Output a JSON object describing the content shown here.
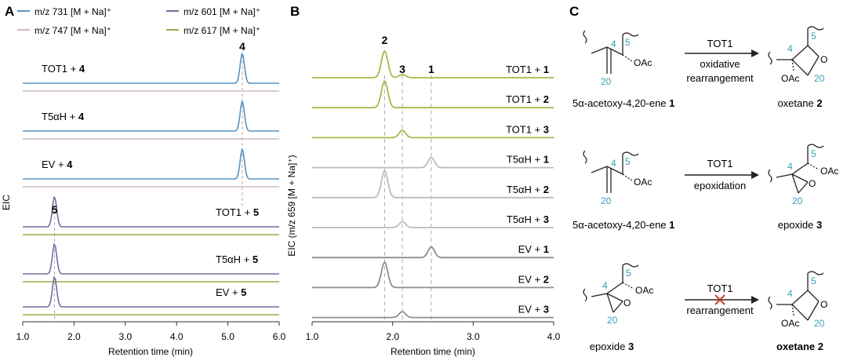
{
  "panel_labels": {
    "a": "A",
    "b": "B",
    "c": "C"
  },
  "legend": [
    {
      "label": "m/z 731 [M + Na]⁺",
      "color": "#5b93bf"
    },
    {
      "label": "m/z 601 [M + Na]⁺",
      "color": "#7a6aa0"
    },
    {
      "label": "m/z 747 [M + Na]⁺",
      "color": "#cfb8cb"
    },
    {
      "label": "m/z 617 [M + Na]⁺",
      "color": "#9bac4b"
    }
  ],
  "panel_a": {
    "ylabel": "EIC",
    "xlabel": "Retention time (min)",
    "peak_labels": [
      {
        "text": "4",
        "x": 5.28
      },
      {
        "text": "5",
        "x": 1.62
      }
    ],
    "traces": [
      {
        "label_plain": "TOT1 + ",
        "label_bold": "4",
        "top_color": "#5b93bf",
        "bottom_color": "#cfb8cb",
        "peak_x": 5.28,
        "peak_height": 1.0,
        "label_pos": "left"
      },
      {
        "label_plain": "T5αH + ",
        "label_bold": "4",
        "top_color": "#5b93bf",
        "bottom_color": "#cfb8cb",
        "peak_x": 5.28,
        "peak_height": 1.0,
        "label_pos": "left"
      },
      {
        "label_plain": "EV + ",
        "label_bold": "4",
        "top_color": "#5b93bf",
        "bottom_color": "#cfb8cb",
        "peak_x": 5.28,
        "peak_height": 1.0,
        "label_pos": "left"
      },
      {
        "label_plain": "TOT1 + ",
        "label_bold": "5",
        "top_color": "#7a6aa0",
        "bottom_color": "#9bac4b",
        "peak_x": 1.62,
        "peak_height": 1.0,
        "label_pos": "right"
      },
      {
        "label_plain": "T5αH + ",
        "label_bold": "5",
        "top_color": "#7a6aa0",
        "bottom_color": "#9bac4b",
        "peak_x": 1.62,
        "peak_height": 1.0,
        "label_pos": "right"
      },
      {
        "label_plain": "EV + ",
        "label_bold": "5",
        "top_color": "#7a6aa0",
        "bottom_color": "#9bac4b",
        "peak_x": 1.62,
        "peak_height": 1.0,
        "label_pos": "right"
      }
    ]
  },
  "panel_b": {
    "ylabel": "EIC (m/z 659 [M + Na]⁺)",
    "xlabel": "Retention time (min)",
    "peak_labels": [
      {
        "text": "2",
        "x": 1.9
      },
      {
        "text": "3",
        "x": 2.12
      },
      {
        "text": "1",
        "x": 2.48
      }
    ],
    "traces": [
      {
        "label_plain": "TOT1 + ",
        "label_bold": "1",
        "color": "#b0b54a",
        "peaks": [
          {
            "x": 1.9,
            "h": 1.0
          },
          {
            "x": 2.12,
            "h": 0.12
          }
        ]
      },
      {
        "label_plain": "TOT1 + ",
        "label_bold": "2",
        "color": "#b0b54a",
        "peaks": [
          {
            "x": 1.9,
            "h": 1.0
          }
        ]
      },
      {
        "label_plain": "TOT1 + ",
        "label_bold": "3",
        "color": "#b0b54a",
        "peaks": [
          {
            "x": 2.12,
            "h": 0.28
          }
        ]
      },
      {
        "label_plain": "T5αH + ",
        "label_bold": "1",
        "color": "#b8bcbc",
        "peaks": [
          {
            "x": 2.48,
            "h": 0.38
          }
        ]
      },
      {
        "label_plain": "T5αH + ",
        "label_bold": "2",
        "color": "#b8bcbc",
        "peaks": [
          {
            "x": 1.9,
            "h": 1.0
          }
        ]
      },
      {
        "label_plain": "T5αH + ",
        "label_bold": "3",
        "color": "#b8bcbc",
        "peaks": [
          {
            "x": 2.12,
            "h": 0.22
          }
        ]
      },
      {
        "label_plain": "EV + ",
        "label_bold": "1",
        "color": "#8e8e8e",
        "peaks": [
          {
            "x": 2.48,
            "h": 0.4
          }
        ]
      },
      {
        "label_plain": "EV + ",
        "label_bold": "2",
        "color": "#8e8e8e",
        "peaks": [
          {
            "x": 1.9,
            "h": 0.95
          }
        ]
      },
      {
        "label_plain": "EV + ",
        "label_bold": "3",
        "color": "#8e8e8e",
        "peaks": [
          {
            "x": 2.12,
            "h": 0.22
          }
        ]
      }
    ]
  },
  "chart_data": [
    {
      "type": "line",
      "title": "",
      "xlabel": "Retention time (min)",
      "ylabel": "EIC",
      "xlim": [
        1.0,
        6.0
      ],
      "xticks": [
        "1.0",
        "2.0",
        "3.0",
        "4.0",
        "5.0",
        "6.0"
      ],
      "series": [
        {
          "name": "TOT1 + 4",
          "channel": "m/z 731 [M + Na]⁺",
          "peaks": [
            {
              "x": 5.28,
              "rel_height": 1.0
            }
          ]
        },
        {
          "name": "T5αH + 4",
          "channel": "m/z 731 [M + Na]⁺",
          "peaks": [
            {
              "x": 5.28,
              "rel_height": 1.0
            }
          ]
        },
        {
          "name": "EV + 4",
          "channel": "m/z 731 [M + Na]⁺",
          "peaks": [
            {
              "x": 5.28,
              "rel_height": 1.0
            }
          ]
        },
        {
          "name": "TOT1 + 5",
          "channel": "m/z 601 [M + Na]⁺",
          "peaks": [
            {
              "x": 1.62,
              "rel_height": 1.0
            }
          ]
        },
        {
          "name": "T5αH + 5",
          "channel": "m/z 601 [M + Na]⁺",
          "peaks": [
            {
              "x": 1.62,
              "rel_height": 1.0
            }
          ]
        },
        {
          "name": "EV + 5",
          "channel": "m/z 601 [M + Na]⁺",
          "peaks": [
            {
              "x": 1.62,
              "rel_height": 1.0
            }
          ]
        }
      ],
      "annotations": [
        "4",
        "5"
      ]
    },
    {
      "type": "line",
      "title": "",
      "xlabel": "Retention time (min)",
      "ylabel": "EIC (m/z 659 [M + Na]⁺)",
      "xlim": [
        1.0,
        4.0
      ],
      "xticks": [
        "1.0",
        "2.0",
        "3.0",
        "4.0"
      ],
      "series": [
        {
          "name": "TOT1 + 1",
          "peaks": [
            {
              "x": 1.9,
              "rel_height": 1.0
            },
            {
              "x": 2.12,
              "rel_height": 0.12
            }
          ]
        },
        {
          "name": "TOT1 + 2",
          "peaks": [
            {
              "x": 1.9,
              "rel_height": 1.0
            }
          ]
        },
        {
          "name": "TOT1 + 3",
          "peaks": [
            {
              "x": 2.12,
              "rel_height": 0.28
            }
          ]
        },
        {
          "name": "T5αH + 1",
          "peaks": [
            {
              "x": 2.48,
              "rel_height": 0.38
            }
          ]
        },
        {
          "name": "T5αH + 2",
          "peaks": [
            {
              "x": 1.9,
              "rel_height": 1.0
            }
          ]
        },
        {
          "name": "T5αH + 3",
          "peaks": [
            {
              "x": 2.12,
              "rel_height": 0.22
            }
          ]
        },
        {
          "name": "EV + 1",
          "peaks": [
            {
              "x": 2.48,
              "rel_height": 0.4
            }
          ]
        },
        {
          "name": "EV + 2",
          "peaks": [
            {
              "x": 1.9,
              "rel_height": 0.95
            }
          ]
        },
        {
          "name": "EV + 3",
          "peaks": [
            {
              "x": 2.12,
              "rel_height": 0.22
            }
          ]
        }
      ],
      "annotations": [
        "2",
        "3",
        "1"
      ]
    }
  ],
  "panel_c": {
    "rows": [
      {
        "enzyme": "TOT1",
        "below_arrow": [
          "oxidative",
          "rearrangement"
        ],
        "blocked": false,
        "left_caption_plain": "5α-acetoxy-4,20-ene ",
        "left_caption_bold": "1",
        "right_caption_plain": "oxetane ",
        "right_caption_bold": "2"
      },
      {
        "enzyme": "TOT1",
        "below_arrow": [
          "epoxidation"
        ],
        "blocked": false,
        "left_caption_plain": "5α-acetoxy-4,20-ene ",
        "left_caption_bold": "1",
        "right_caption_plain": "epoxide ",
        "right_caption_bold": "3"
      },
      {
        "enzyme": "TOT1",
        "below_arrow": [
          "rearrangement"
        ],
        "blocked": true,
        "left_caption_plain": "epoxide ",
        "left_caption_bold": "3",
        "right_caption_plain": "oxetane ",
        "right_caption_bold": "2"
      }
    ],
    "atom_labels": {
      "c4": "4",
      "c5": "5",
      "c20": "20",
      "oac": "OAc",
      "o": "O"
    },
    "atom_color": "#3a9fb5"
  }
}
